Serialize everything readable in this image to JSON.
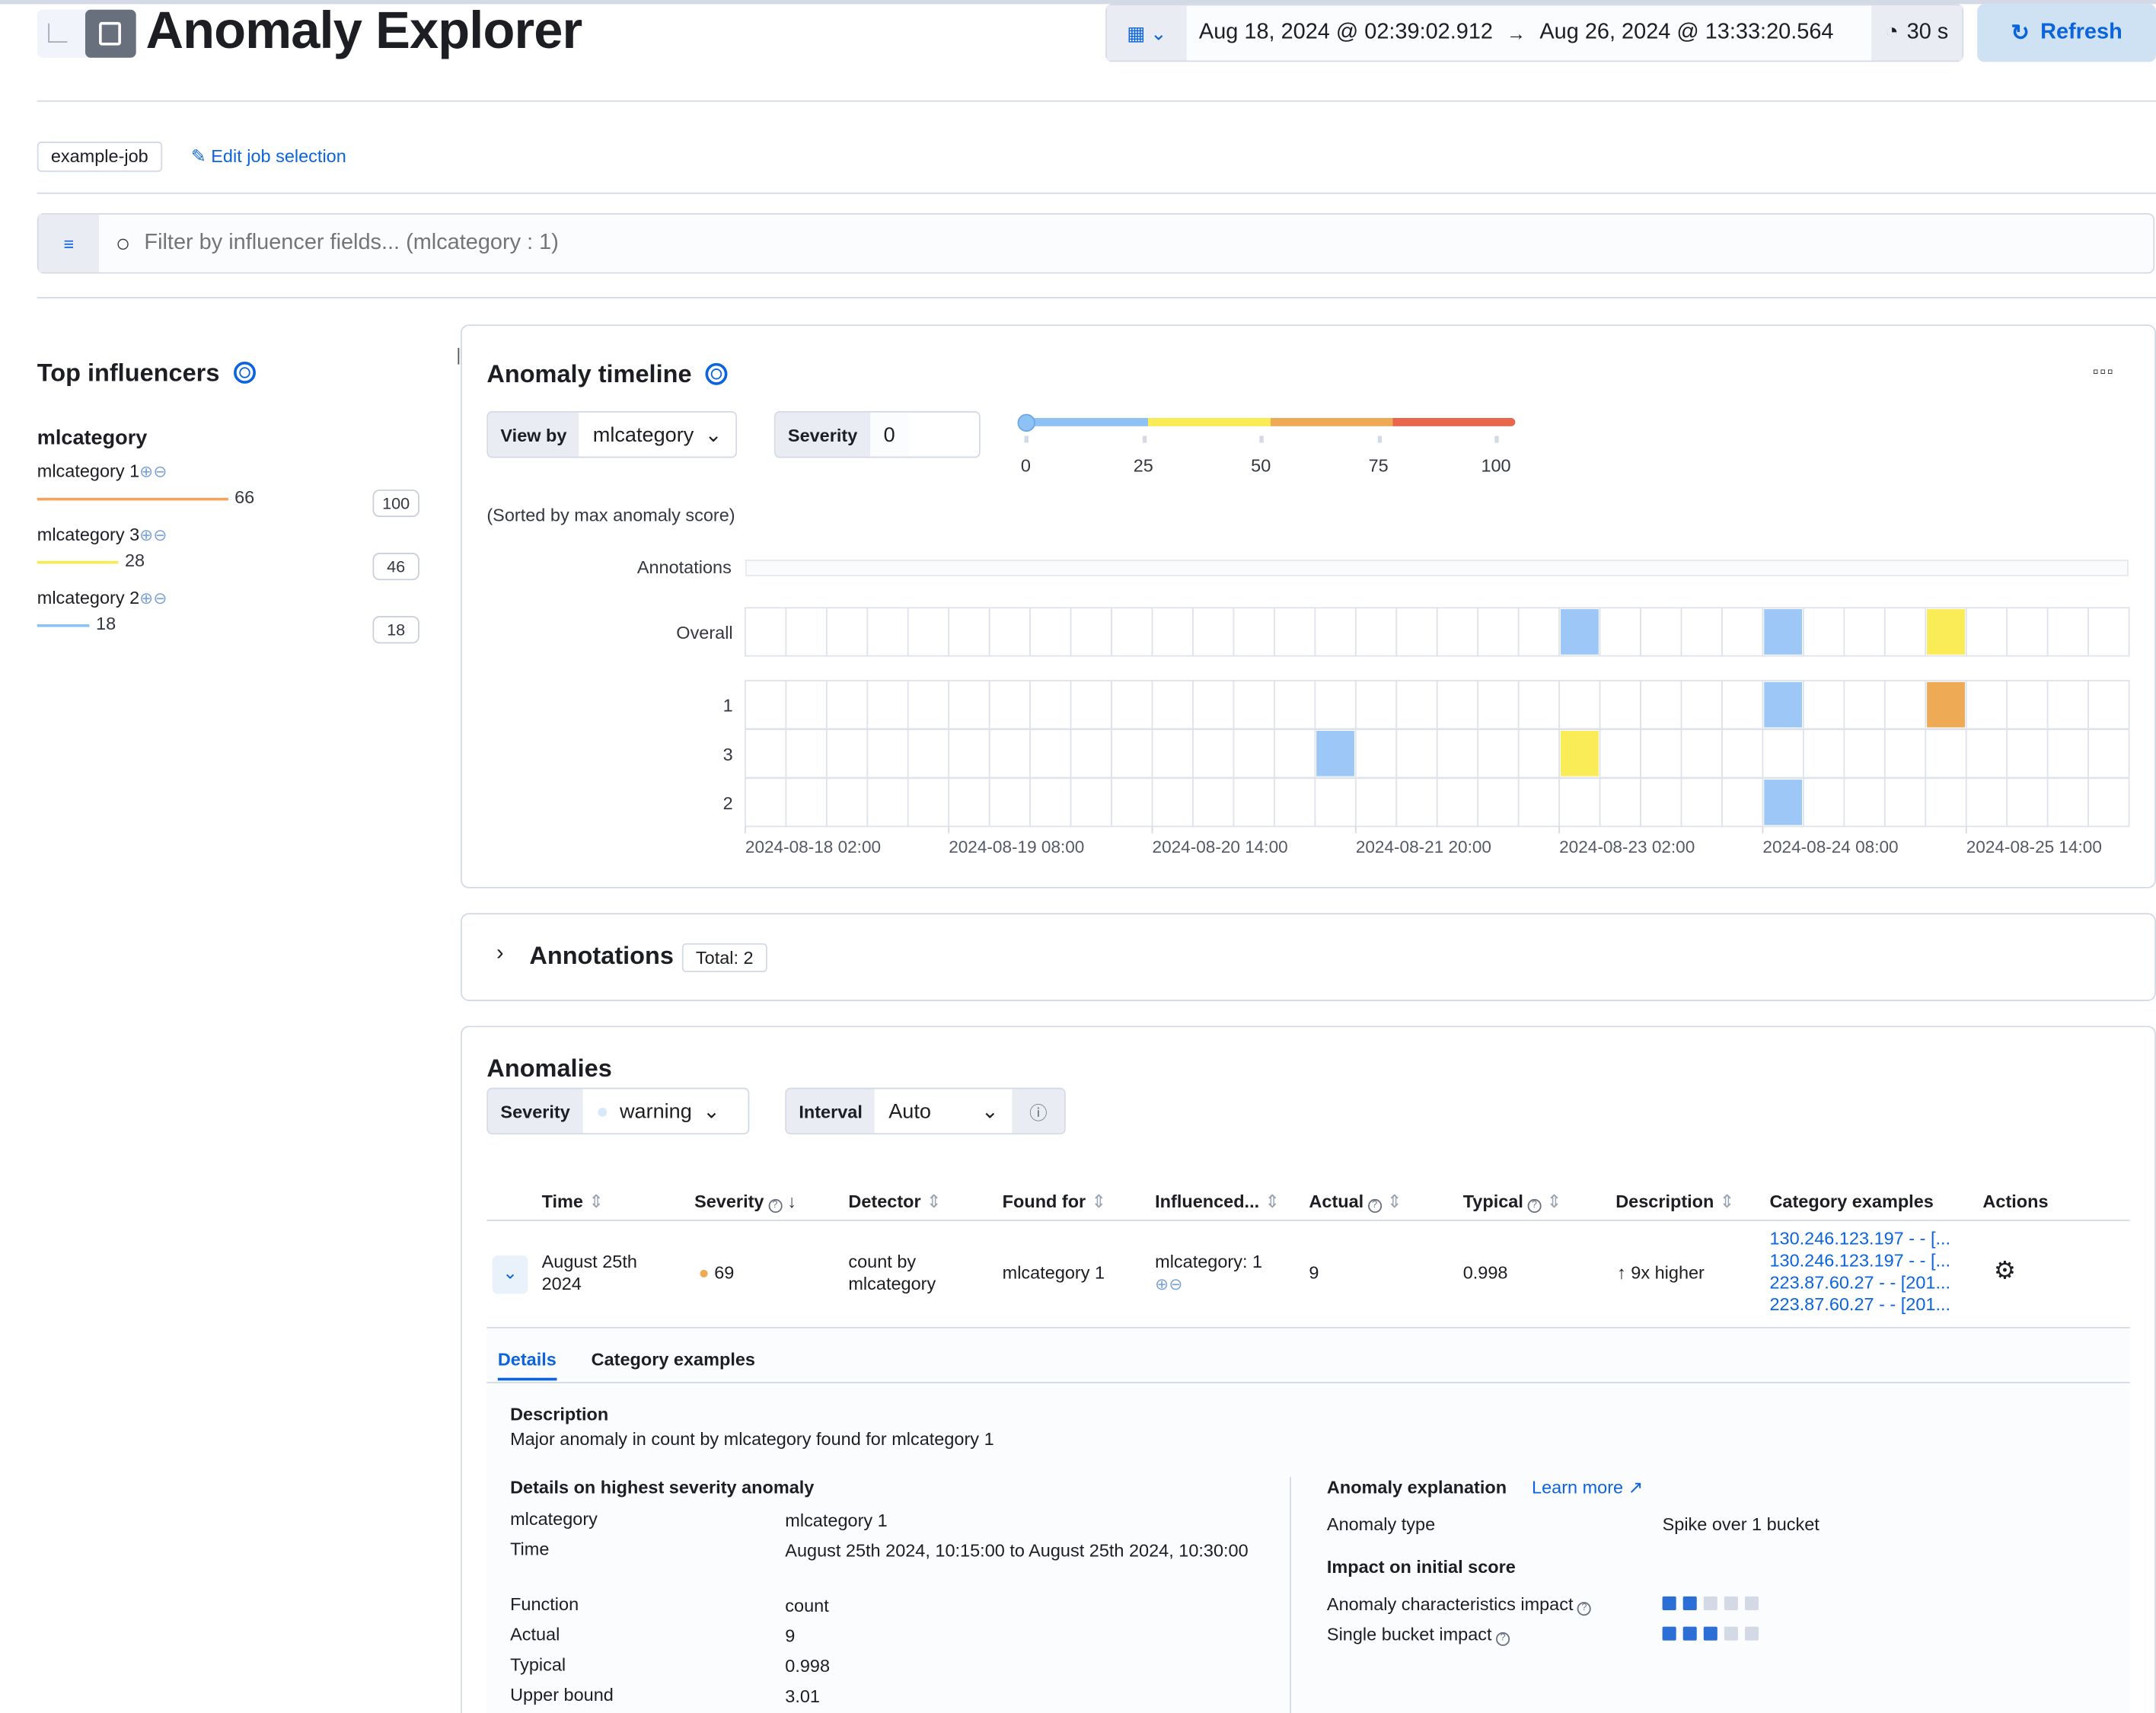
{
  "header": {
    "title": "Anomaly Explorer",
    "date_start": "Aug 18, 2024 @ 02:39:02.912",
    "date_end": "Aug 26, 2024 @ 13:33:20.564",
    "refresh_interval": "30 s",
    "refresh_label": "Refresh"
  },
  "job": {
    "selected": "example-job",
    "edit_label": "Edit job selection"
  },
  "filter": {
    "placeholder": "Filter by influencer fields... (mlcategory : 1)"
  },
  "influencers": {
    "title": "Top influencers",
    "field": "mlcategory",
    "items": [
      {
        "label": "mlcategory 1",
        "score": "66",
        "max": "100",
        "color": "#f5a35c",
        "fill": 0.66
      },
      {
        "label": "mlcategory 3",
        "score": "28",
        "max": "46",
        "color": "#fce94f",
        "fill": 0.28
      },
      {
        "label": "mlcategory 2",
        "score": "18",
        "max": "18",
        "color": "#8ec2f4",
        "fill": 0.18
      }
    ]
  },
  "timeline": {
    "title": "Anomaly timeline",
    "view_by_label": "View by",
    "view_by": "mlcategory",
    "severity_label": "Severity",
    "severity": "0",
    "sorted_note": "(Sorted by max anomaly score)",
    "annotations_label": "Annotations",
    "overall_label": "Overall",
    "severity_scale": [
      "0",
      "25",
      "50",
      "75",
      "100"
    ],
    "colors": {
      "low": "#9cc7f7",
      "warning": "#f9ec56",
      "minor": "#efaa56",
      "major": "#e7664c"
    }
  },
  "chart_data": {
    "type": "heatmap",
    "bucket_span": "6h",
    "x_ticks": [
      "2024-08-18 02:00",
      "2024-08-19 08:00",
      "2024-08-20 14:00",
      "2024-08-21 20:00",
      "2024-08-23 02:00",
      "2024-08-24 08:00",
      "2024-08-25 14:00"
    ],
    "lanes": [
      "Overall",
      "1",
      "3",
      "2"
    ],
    "cells": [
      {
        "lane": "Overall",
        "time": "2024-08-23 02:00",
        "severity": "low"
      },
      {
        "lane": "Overall",
        "time": "2024-08-24 08:00",
        "severity": "low"
      },
      {
        "lane": "Overall",
        "time": "2024-08-25 08:00",
        "severity": "warning"
      },
      {
        "lane": "1",
        "time": "2024-08-24 08:00",
        "severity": "low"
      },
      {
        "lane": "1",
        "time": "2024-08-25 08:00",
        "severity": "minor"
      },
      {
        "lane": "3",
        "time": "2024-08-21 14:00",
        "severity": "low"
      },
      {
        "lane": "3",
        "time": "2024-08-23 02:00",
        "severity": "warning"
      },
      {
        "lane": "2",
        "time": "2024-08-24 08:00",
        "severity": "low"
      }
    ]
  },
  "annotations": {
    "title": "Annotations",
    "total": "Total: 2"
  },
  "anomalies": {
    "title": "Anomalies",
    "severity_label": "Severity",
    "severity": "warning",
    "interval_label": "Interval",
    "interval": "Auto",
    "columns": [
      "Time",
      "Severity",
      "Detector",
      "Found for",
      "Influenced...",
      "Actual",
      "Typical",
      "Description",
      "Category examples",
      "Actions"
    ],
    "row": {
      "time_1": "August 25th",
      "time_2": "2024",
      "severity": "69",
      "detector_1": "count by",
      "detector_2": "mlcategory",
      "found_for": "mlcategory 1",
      "influenced": "mlcategory: 1",
      "actual": "9",
      "typical": "0.998",
      "description": "9x higher",
      "examples": [
        "130.246.123.197 - - [...",
        "130.246.123.197 - - [...",
        "223.87.60.27 - - [201...",
        "223.87.60.27 - - [201..."
      ]
    },
    "tabs": [
      "Details",
      "Category examples"
    ],
    "details": {
      "description_label": "Description",
      "description": "Major anomaly in count by mlcategory found for mlcategory 1",
      "highest_label": "Details on highest severity anomaly",
      "fields": [
        [
          "mlcategory",
          "mlcategory 1"
        ],
        [
          "Time",
          "August 25th 2024, 10:15:00 to August 25th 2024, 10:30:00"
        ],
        [
          "Function",
          "count"
        ],
        [
          "Actual",
          "9"
        ],
        [
          "Typical",
          "0.998"
        ],
        [
          "Upper bound",
          "3.01"
        ]
      ],
      "explanation_label": "Anomaly explanation",
      "learn_more": "Learn more",
      "anomaly_type_label": "Anomaly type",
      "anomaly_type": "Spike over 1 bucket",
      "impact_label": "Impact on initial score",
      "impacts": [
        {
          "label": "Anomaly characteristics impact",
          "level": 2,
          "of": 5
        },
        {
          "label": "Single bucket impact",
          "level": 3,
          "of": 5
        }
      ]
    }
  }
}
